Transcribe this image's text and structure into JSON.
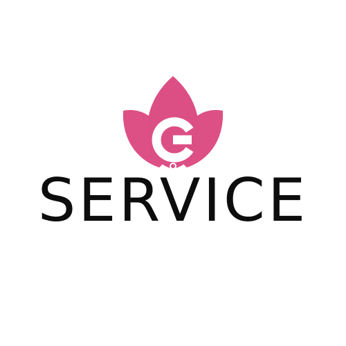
{
  "logo": {
    "brand_word": "SERVICE",
    "emblem_letter": "G",
    "emblem_icon": "lotus-flower-icon",
    "colors": {
      "petal": "#dd5085",
      "petal_dark": "#d2457a",
      "letter": "#ffffff",
      "wordmark": "#0d0d0d",
      "background": "#ffffff"
    }
  }
}
